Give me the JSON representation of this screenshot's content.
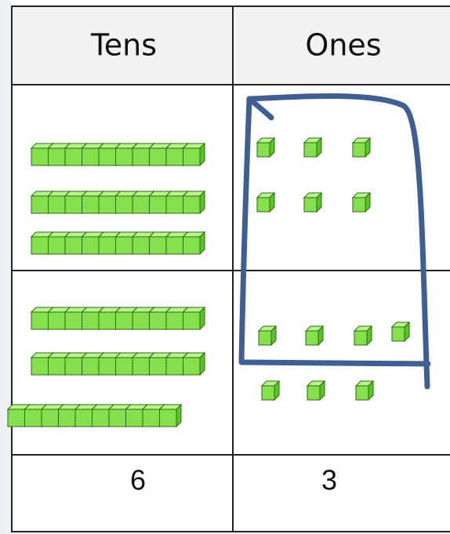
{
  "table": {
    "header": [
      "Tens",
      "Ones"
    ],
    "totals": [
      "6",
      "3"
    ]
  }
}
